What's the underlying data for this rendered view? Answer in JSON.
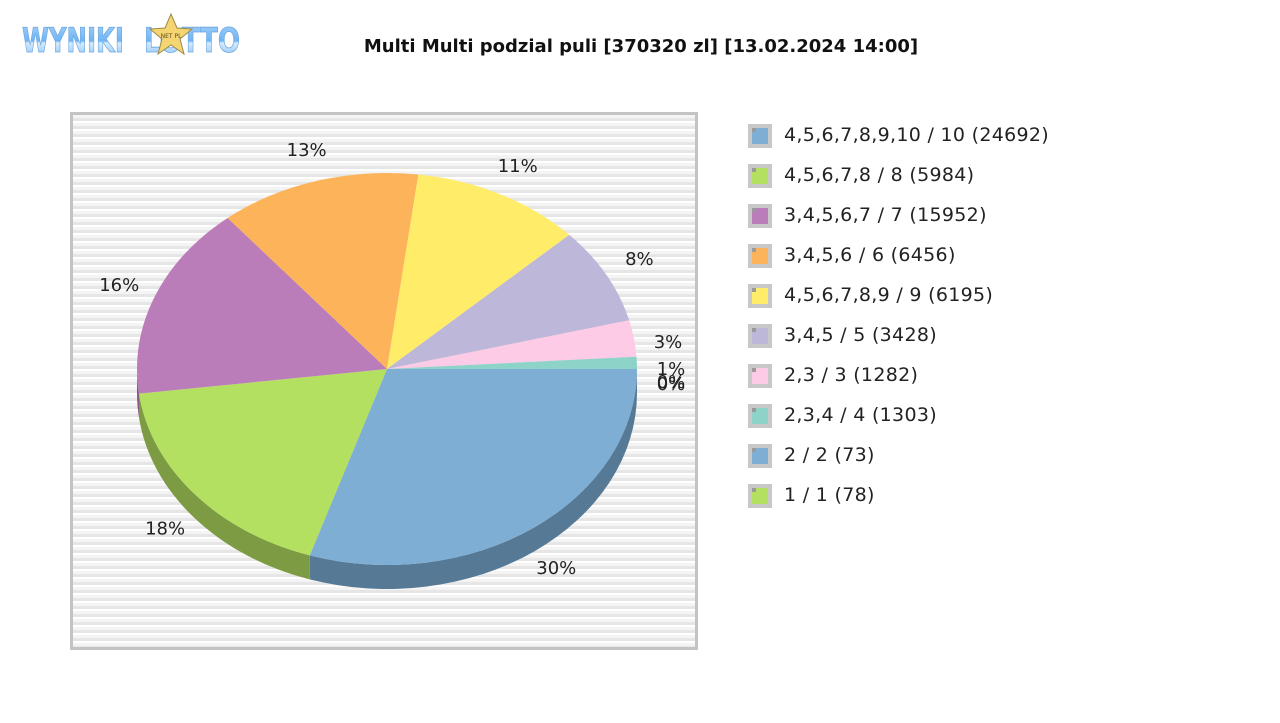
{
  "logo": {
    "text_left": "WYNIKI",
    "text_right": "LOTTO",
    "star_text": "NET PL"
  },
  "title": "Multi Multi podzial puli [370320 zl] [13.02.2024 14:00]",
  "chart_data": {
    "type": "pie",
    "title": "Multi Multi podzial puli [370320 zl] [13.02.2024 14:00]",
    "three_d": true,
    "legend_position": "right",
    "series": [
      {
        "name": "4,5,6,7,8,9,10 / 10 (24692)",
        "label": "4,5,6,7,8,9,10 / 10",
        "count": 24692,
        "percent": 30,
        "color": "#7eaed4",
        "dark": "#567a96"
      },
      {
        "name": "4,5,6,7,8 / 8 (5984)",
        "label": "4,5,6,7,8 / 8",
        "count": 5984,
        "percent": 18,
        "color": "#b3e061",
        "dark": "#7c9b42"
      },
      {
        "name": "3,4,5,6,7 / 7 (15952)",
        "label": "3,4,5,6,7 / 7",
        "count": 15952,
        "percent": 16,
        "color": "#bb7dba",
        "dark": "#845783"
      },
      {
        "name": "3,4,5,6 / 6 (6456)",
        "label": "3,4,5,6 / 6",
        "count": 6456,
        "percent": 13,
        "color": "#fdb35a",
        "dark": "#b27e3f"
      },
      {
        "name": "4,5,6,7,8,9 / 9 (6195)",
        "label": "4,5,6,7,8,9 / 9",
        "count": 6195,
        "percent": 11,
        "color": "#ffec68",
        "dark": "#b3a549"
      },
      {
        "name": "3,4,5 / 5 (3428)",
        "label": "3,4,5 / 5",
        "count": 3428,
        "percent": 8,
        "color": "#bdb7d9",
        "dark": "#858099"
      },
      {
        "name": "2,3 / 3 (1282)",
        "label": "2,3 / 3",
        "count": 1282,
        "percent": 3,
        "color": "#fdcbe5",
        "dark": "#b18ea0"
      },
      {
        "name": "2,3,4 / 4 (1303)",
        "label": "2,3,4 / 4",
        "count": 1303,
        "percent": 1,
        "color": "#8dd3c7",
        "dark": "#63948b"
      },
      {
        "name": "2 / 2 (73)",
        "label": "2 / 2",
        "count": 73,
        "percent": 0,
        "color": "#7eaed4",
        "dark": "#567a96"
      },
      {
        "name": "1 / 1 (78)",
        "label": "1 / 1",
        "count": 78,
        "percent": 0,
        "color": "#b3e061",
        "dark": "#7c9b42"
      }
    ],
    "slice_order_clockwise_from_3_oclock": [
      "4,5,6,7,8,9,10 / 10 (24692)",
      "4,5,6,7,8 / 8 (5984)",
      "3,4,5,6,7 / 7 (15952)",
      "3,4,5,6 / 6 (6456)",
      "4,5,6,7,8,9 / 9 (6195)",
      "3,4,5 / 5 (3428)",
      "2,3 / 3 (1282)",
      "2,3,4 / 4 (1303)",
      "2 / 2 (73)",
      "1 / 1 (78)"
    ],
    "slice_labels": [
      "30%",
      "18%",
      "16%",
      "13%",
      "11%",
      "8%",
      "3%",
      "1%",
      "0%",
      "0%"
    ]
  },
  "legend": [
    {
      "text": "4,5,6,7,8,9,10 / 10 (24692)",
      "color": "#7eaed4"
    },
    {
      "text": "4,5,6,7,8 / 8 (5984)",
      "color": "#b3e061"
    },
    {
      "text": "3,4,5,6,7 / 7 (15952)",
      "color": "#bb7dba"
    },
    {
      "text": "3,4,5,6 / 6 (6456)",
      "color": "#fdb35a"
    },
    {
      "text": "4,5,6,7,8,9 / 9 (6195)",
      "color": "#ffec68"
    },
    {
      "text": "3,4,5 / 5 (3428)",
      "color": "#bdb7d9"
    },
    {
      "text": "2,3 / 3 (1282)",
      "color": "#fdcbe5"
    },
    {
      "text": "2,3,4 / 4 (1303)",
      "color": "#8dd3c7"
    },
    {
      "text": "2 / 2 (73)",
      "color": "#7eaed4"
    },
    {
      "text": "1 / 1 (78)",
      "color": "#b3e061"
    }
  ]
}
